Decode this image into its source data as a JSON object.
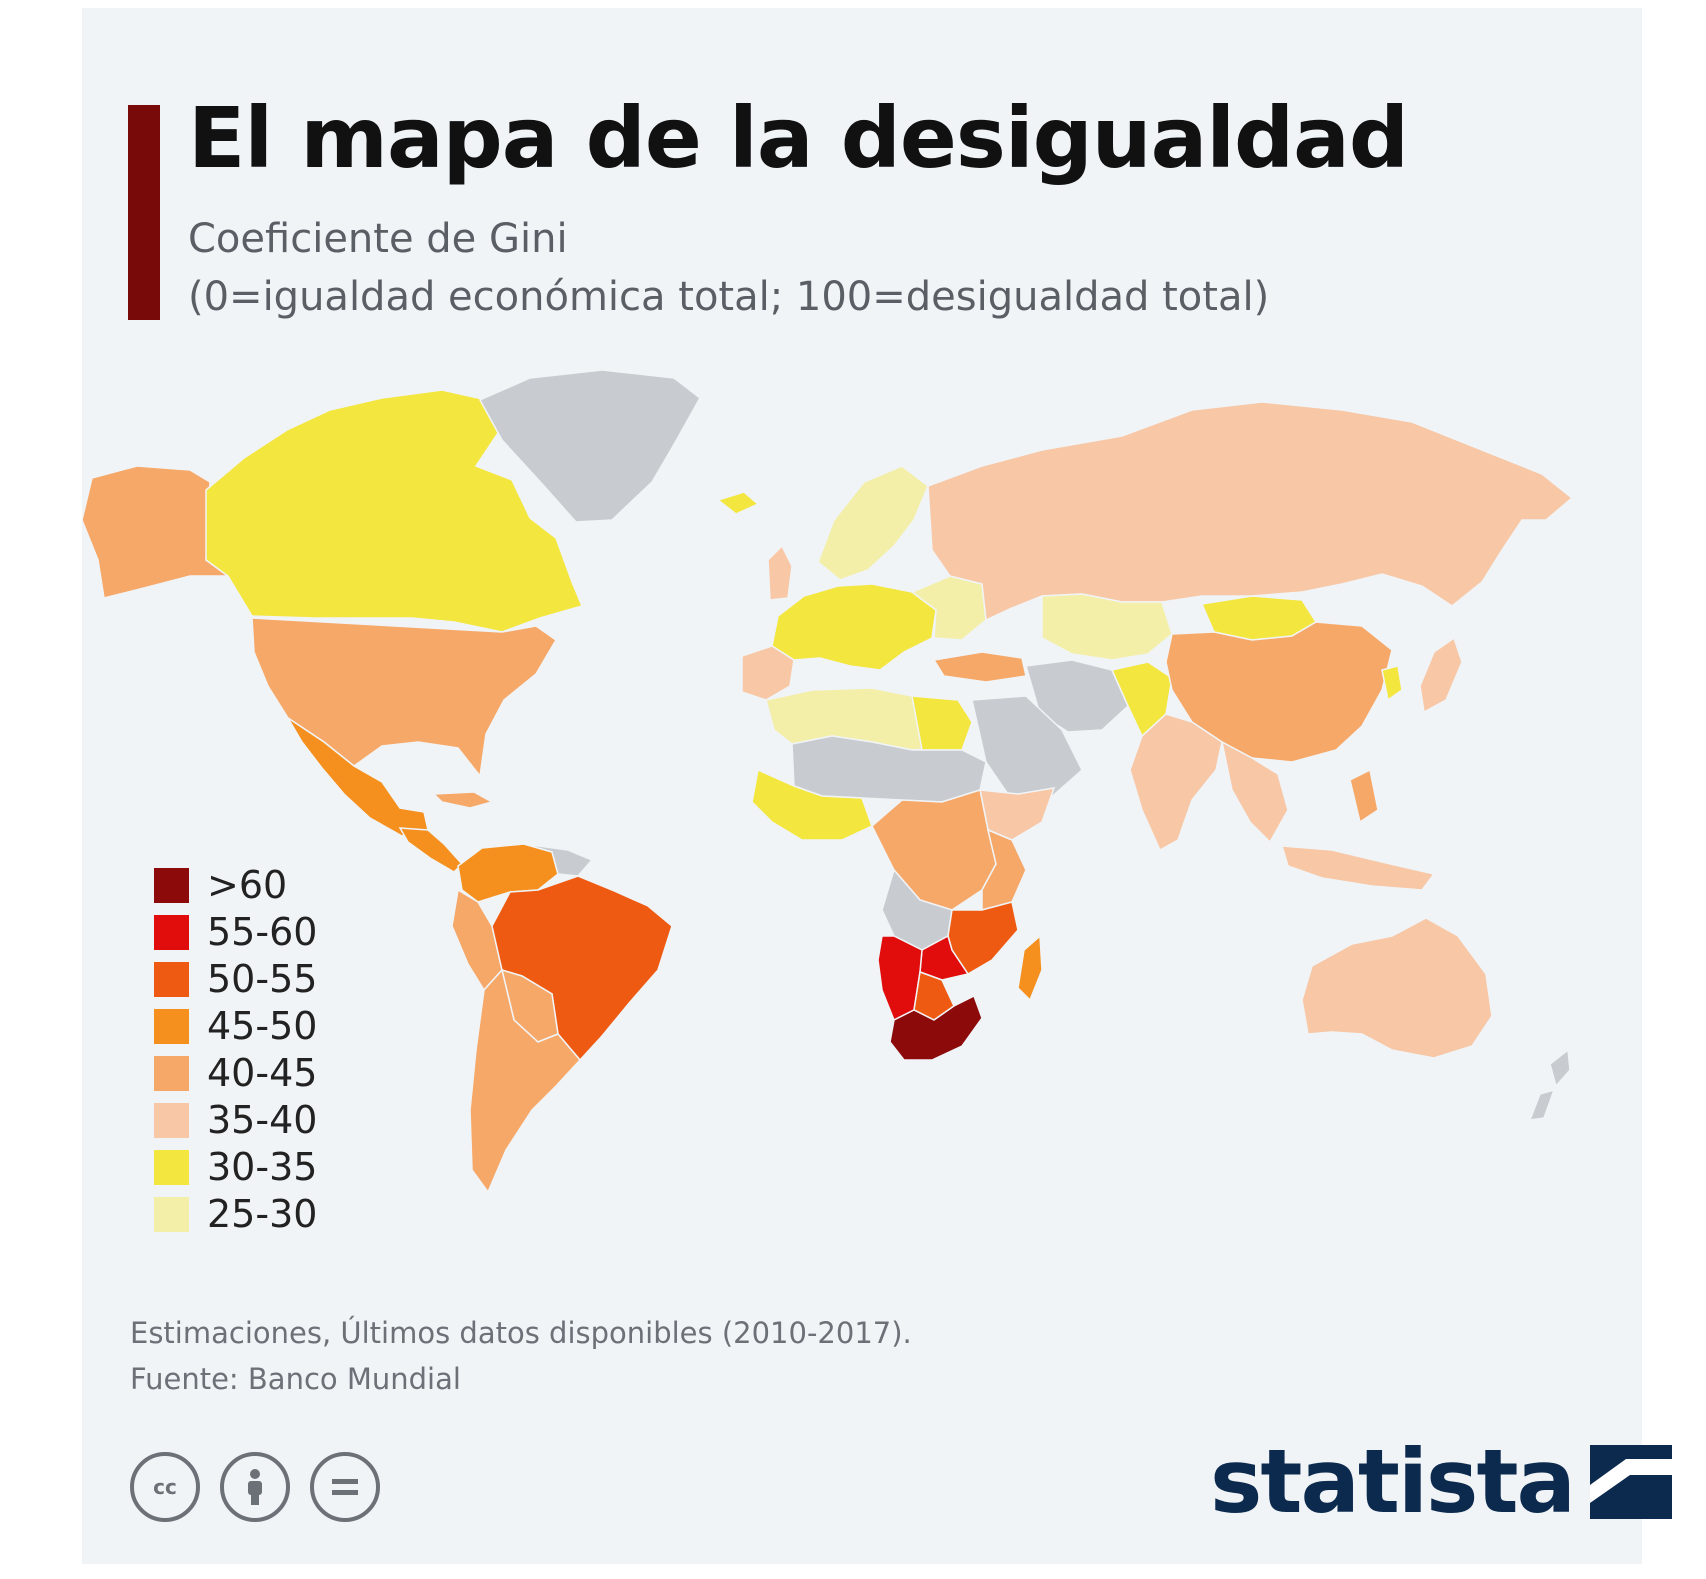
{
  "title": "El mapa de la desigualdad",
  "subtitle_line1": "Coeficiente de Gini",
  "subtitle_line2": "(0=igualdad económica total; 100=desigualdad total)",
  "legend": [
    {
      "label": ">60",
      "color": "#8c0a0a"
    },
    {
      "label": "55-60",
      "color": "#e10d0d"
    },
    {
      "label": "50-55",
      "color": "#ee5a12"
    },
    {
      "label": "45-50",
      "color": "#f5901e"
    },
    {
      "label": "40-45",
      "color": "#f6a869"
    },
    {
      "label": "35-40",
      "color": "#f7c7a6"
    },
    {
      "label": "30-35",
      "color": "#f3e63e"
    },
    {
      "label": "25-30",
      "color": "#f3efa9"
    }
  ],
  "no_data_color": "#c8cbcf",
  "note": "Estimaciones, Últimos datos disponibles (2010-2017).",
  "source": "Fuente: Banco Mundial",
  "brand": "statista",
  "icons": [
    "cc-icon",
    "attribution-icon",
    "no-derivatives-icon"
  ]
}
